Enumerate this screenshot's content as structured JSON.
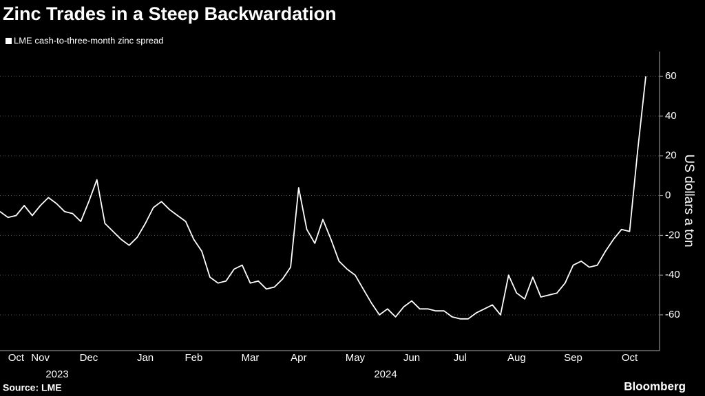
{
  "chart_data": {
    "type": "line",
    "title": "Zinc Trades in a Steep Backwardation",
    "source": "Source: LME",
    "brand": "Bloomberg",
    "y_axis_label": "US dollars a ton",
    "years": [
      "2023",
      "2024"
    ],
    "categories": [
      null,
      null,
      "Oct",
      null,
      null,
      "Nov",
      null,
      null,
      null,
      null,
      null,
      "Dec",
      null,
      null,
      null,
      null,
      null,
      null,
      "Jan",
      null,
      null,
      null,
      null,
      null,
      "Feb",
      null,
      null,
      null,
      null,
      null,
      null,
      "Mar",
      null,
      null,
      null,
      null,
      null,
      "Apr",
      null,
      null,
      null,
      null,
      null,
      null,
      "May",
      null,
      null,
      null,
      null,
      null,
      null,
      "Jun",
      null,
      null,
      null,
      null,
      null,
      "Jul",
      null,
      null,
      null,
      null,
      null,
      null,
      "Aug",
      null,
      null,
      null,
      null,
      null,
      null,
      "Sep",
      null,
      null,
      null,
      null,
      null,
      null,
      "Oct",
      null,
      null
    ],
    "series": [
      {
        "name": "LME cash-to-three-month zinc spread",
        "color": "#ffffff",
        "values": [
          -8,
          -11,
          -10,
          -5,
          -10,
          -5,
          -1,
          -4,
          -8,
          -9,
          -13,
          -3,
          8,
          -14,
          -18,
          -22,
          -25,
          -21,
          -14,
          -6,
          -3,
          -7,
          -10,
          -13,
          -22,
          -28,
          -41,
          -44,
          -43,
          -37,
          -35,
          -44,
          -43,
          -47,
          -46,
          -42,
          -36,
          4,
          -17,
          -24,
          -12,
          -22,
          -33,
          -37,
          -40,
          -47,
          -54,
          -60,
          -57,
          -61,
          -56,
          -53,
          -57,
          -57,
          -58,
          -58,
          -61,
          -62,
          -62,
          -59,
          -57,
          -55,
          -60,
          -40,
          -49,
          -52,
          -41,
          -51,
          -50,
          -49,
          -44,
          -35,
          -33,
          -36,
          -35,
          -28,
          -22,
          -17,
          -18,
          23,
          60
        ]
      }
    ],
    "ylim": [
      -78,
      72.5
    ],
    "yticks": [
      -60,
      -40,
      -20,
      0,
      20,
      40,
      60
    ],
    "grid": true
  }
}
